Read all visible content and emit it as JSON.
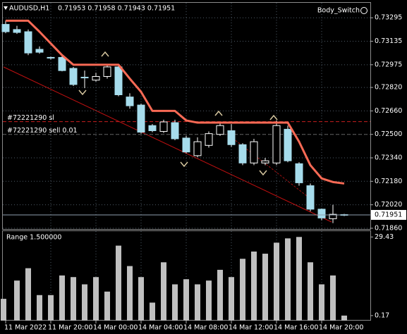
{
  "chart_data": [
    {
      "type": "candlestick",
      "title": "AUDUSD,H1",
      "subtitle": "0.71953 0.71958 0.71943 0.71951",
      "indicator": "Body_Switch",
      "categories": [
        "11 Mar 2022",
        null,
        null,
        null,
        "11 Mar 20:00",
        null,
        null,
        null,
        "14 Mar 00:00",
        null,
        null,
        null,
        "14 Mar 04:00",
        null,
        null,
        null,
        "14 Mar 08:00",
        null,
        null,
        null,
        "14 Mar 12:00",
        null,
        null,
        null,
        "14 Mar 16:00",
        null,
        null,
        null,
        "14 Mar 20:00",
        null,
        null
      ],
      "open": [
        0.7325,
        0.73215,
        0.732,
        0.7308,
        0.73025,
        0.73025,
        0.7295,
        0.7289,
        0.7287,
        0.72895,
        0.7296,
        0.72755,
        0.727,
        0.7256,
        0.7252,
        0.7258,
        0.72475,
        0.72355,
        0.72425,
        0.725,
        0.72525,
        0.7243,
        0.72305,
        0.72305,
        0.72305,
        0.72535,
        0.723,
        0.7215,
        0.7199,
        0.71925,
        0.71953
      ],
      "high": [
        0.73275,
        0.7324,
        0.73215,
        0.731,
        0.7303,
        0.7304,
        0.7296,
        0.72935,
        0.7292,
        0.72975,
        0.7298,
        0.7278,
        0.7271,
        0.7257,
        0.726,
        0.726,
        0.7249,
        0.7248,
        0.7252,
        0.7258,
        0.7257,
        0.7244,
        0.7247,
        0.7234,
        0.72595,
        0.7256,
        0.7231,
        0.72165,
        0.71995,
        0.7202,
        0.71958
      ],
      "low": [
        0.7319,
        0.73185,
        0.7304,
        0.7305,
        0.7301,
        0.7293,
        0.7283,
        0.72815,
        0.7286,
        0.7288,
        0.7276,
        0.72675,
        0.72505,
        0.72515,
        0.7251,
        0.7246,
        0.7237,
        0.72345,
        0.7241,
        0.7249,
        0.72415,
        0.7229,
        0.7229,
        0.7229,
        0.7229,
        0.7231,
        0.7215,
        0.71975,
        0.71915,
        0.71895,
        0.71943
      ],
      "close": [
        0.732,
        0.73195,
        0.73055,
        0.7306,
        0.7302,
        0.72935,
        0.7284,
        0.72885,
        0.72895,
        0.7296,
        0.7277,
        0.72695,
        0.72515,
        0.72525,
        0.72585,
        0.7247,
        0.7238,
        0.7245,
        0.72505,
        0.7256,
        0.7243,
        0.72305,
        0.7245,
        0.7232,
        0.7256,
        0.7232,
        0.7217,
        0.7199,
        0.7193,
        0.71955,
        0.71951
      ],
      "up_color": "#000000",
      "down_color": "#a6dcec",
      "series": [
        {
          "color": "#f86a55",
          "values": [
            0.73275,
            0.73275,
            0.73275,
            0.732,
            0.7312,
            0.7304,
            0.72975,
            0.72975,
            0.72975,
            0.72975,
            0.72975,
            0.7288,
            0.7279,
            0.7266,
            0.7266,
            0.7266,
            0.72595,
            0.7258,
            0.7258,
            0.7258,
            0.7258,
            0.7258,
            0.7258,
            0.7258,
            0.7258,
            0.7258,
            0.7245,
            0.7229,
            0.722,
            0.72175,
            0.72165
          ]
        }
      ],
      "levels": [
        {
          "label": "#72221290 sl",
          "value": 0.72587,
          "color": "#c81e1e"
        },
        {
          "label": "#72221290 sell 0.01",
          "value": 0.725,
          "color": "#606060"
        }
      ],
      "current_price": 0.71951,
      "ylim": [
        0.7185,
        0.73397
      ],
      "yticks": [
        0.73295,
        0.73135,
        0.72975,
        {
          "value": 0.7282,
          "label": "0.72820"
        },
        {
          "value": 0.7266,
          "label": "0.72660"
        },
        {
          "value": 0.725,
          "label": "0.72500"
        },
        {
          "value": 0.7234,
          "label": "0.72340"
        },
        {
          "value": 0.7218,
          "label": "0.72180"
        },
        {
          "value": 0.7202,
          "label": "0.72020"
        },
        {
          "value": 0.7186,
          "label": "0.71860"
        }
      ],
      "grid": true
    },
    {
      "type": "bar",
      "title": "Range 1.500000",
      "color": "#c0c0c0",
      "values": [
        6.4,
        13.2,
        17.8,
        7.8,
        7.8,
        15.1,
        14.5,
        11.8,
        14.5,
        9.1,
        26.2,
        18.6,
        14.5,
        5.0,
        20.0,
        11.8,
        13.7,
        11.8,
        13.2,
        17.2,
        14.5,
        21.3,
        24.0,
        23.2,
        27.3,
        28.9,
        29.43,
        20.0,
        11.8,
        15.1,
        0.17
      ],
      "ylim": [
        -1.7,
        31.6
      ],
      "yticks": [
        29.43,
        0.17
      ]
    }
  ]
}
